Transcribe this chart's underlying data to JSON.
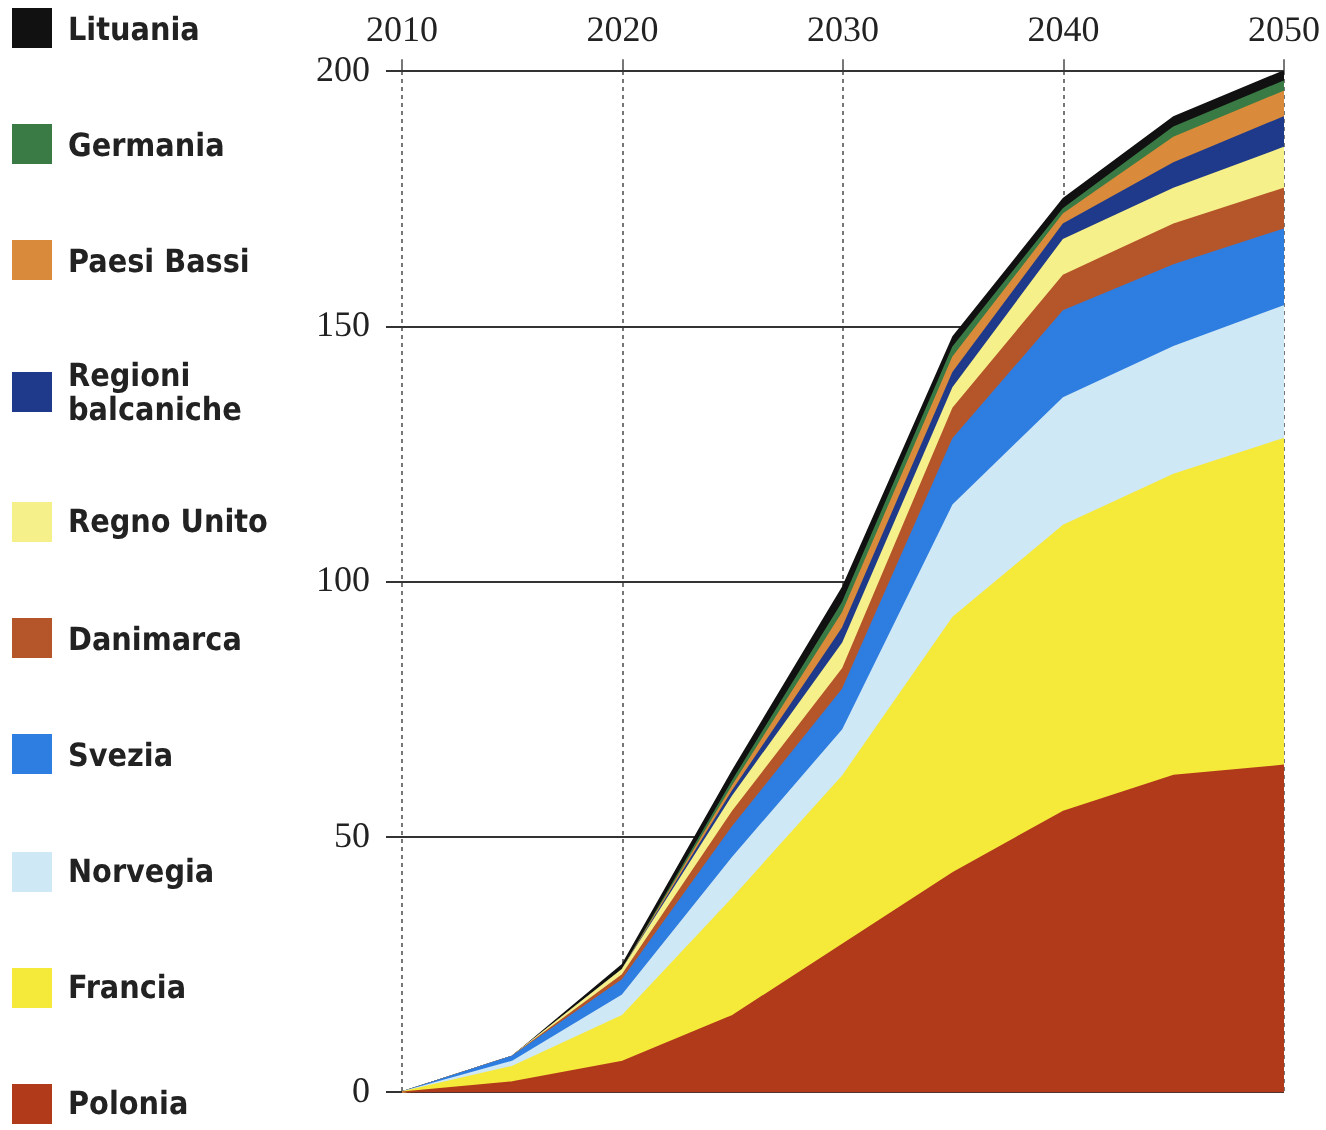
{
  "chart_data": {
    "type": "area",
    "stacked": true,
    "grid": true,
    "legend": "left",
    "x": [
      2010,
      2015,
      2020,
      2025,
      2030,
      2035,
      2040,
      2045,
      2050
    ],
    "xlim": [
      2010,
      2050
    ],
    "xticks": [
      2010,
      2020,
      2030,
      2040,
      2050
    ],
    "ylim": [
      0,
      200
    ],
    "yticks": [
      0,
      50,
      100,
      150,
      200
    ],
    "series": [
      {
        "name": "Polonia",
        "color": "#b03a1a",
        "values": [
          0,
          2,
          6,
          15,
          29,
          43,
          55,
          62,
          64
        ]
      },
      {
        "name": "Francia",
        "color": "#f5e93a",
        "values": [
          0,
          3,
          9,
          23,
          33,
          50,
          56,
          59,
          64
        ]
      },
      {
        "name": "Norvegia",
        "color": "#cfe8f5",
        "values": [
          0,
          1,
          4,
          8,
          9,
          22,
          25,
          25,
          26
        ]
      },
      {
        "name": "Svezia",
        "color": "#2e7de0",
        "values": [
          0,
          1,
          3,
          6,
          8,
          13,
          17,
          16,
          15
        ]
      },
      {
        "name": "Danimarca",
        "color": "#b5552a",
        "values": [
          0,
          0,
          1,
          3,
          4,
          6,
          7,
          8,
          8
        ]
      },
      {
        "name": "Regno Unito",
        "color": "#f5f08a",
        "values": [
          0,
          0,
          1,
          3,
          5,
          4,
          7,
          7,
          8
        ]
      },
      {
        "name": "Regioni balcaniche",
        "color": "#1f3a8a",
        "values": [
          0,
          0,
          0,
          1,
          3,
          3,
          3,
          5,
          6
        ]
      },
      {
        "name": "Paesi Bassi",
        "color": "#d98a3a",
        "values": [
          0,
          0,
          0,
          1,
          3,
          3,
          2,
          5,
          5
        ]
      },
      {
        "name": "Germania",
        "color": "#3a7a45",
        "values": [
          0,
          0,
          0,
          1,
          2,
          2,
          1,
          2,
          2
        ]
      },
      {
        "name": "Lituania",
        "color": "#111111",
        "values": [
          0,
          0,
          1,
          2,
          3,
          2,
          2,
          2,
          2
        ]
      }
    ]
  }
}
